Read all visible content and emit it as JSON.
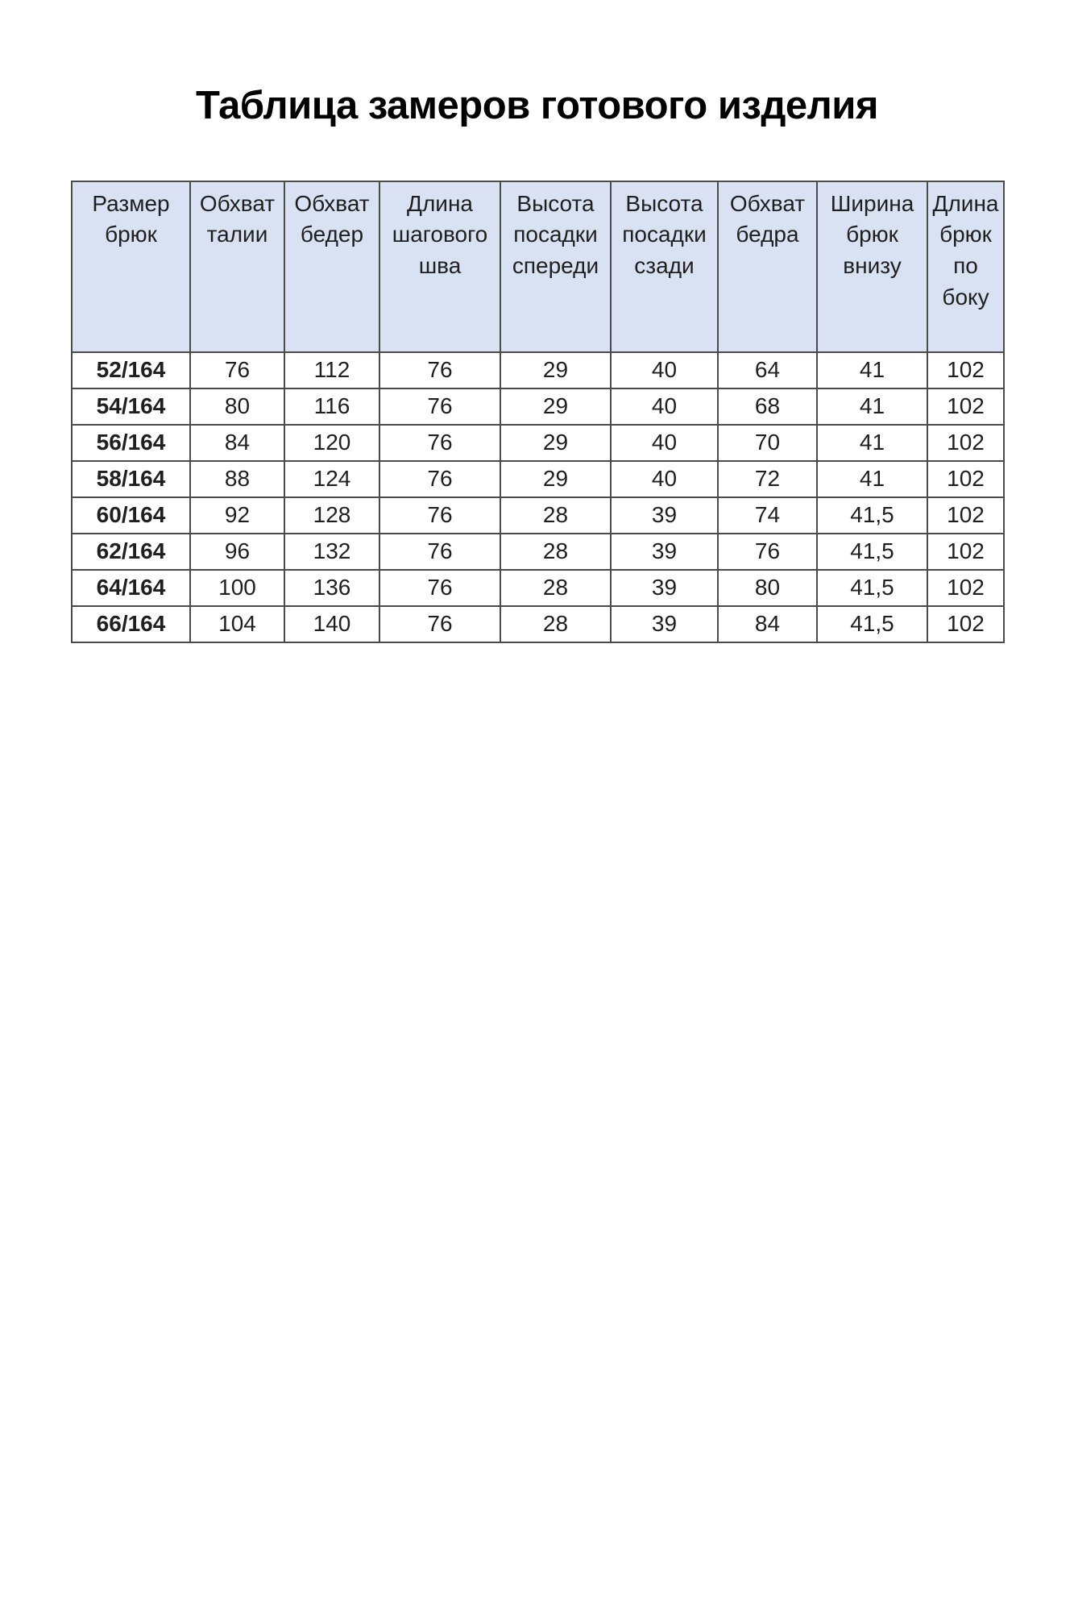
{
  "page": {
    "title": "Таблица замеров готового изделия"
  },
  "colors": {
    "header_bg": "#d9e2f3",
    "border": "#4a4a4a",
    "text": "#1f1f1f",
    "page_bg": "#ffffff"
  },
  "table": {
    "headers": [
      "Размер брюк",
      "Обхват талии",
      "Обхват бедер",
      "Длина шагового шва",
      "Высота посадки спереди",
      "Высота посадки сзади",
      "Обхват бедра",
      "Ширина брюк внизу",
      "Длина брюк по боку"
    ],
    "rows": [
      [
        "52/164",
        "76",
        "112",
        "76",
        "29",
        "40",
        "64",
        "41",
        "102"
      ],
      [
        "54/164",
        "80",
        "116",
        "76",
        "29",
        "40",
        "68",
        "41",
        "102"
      ],
      [
        "56/164",
        "84",
        "120",
        "76",
        "29",
        "40",
        "70",
        "41",
        "102"
      ],
      [
        "58/164",
        "88",
        "124",
        "76",
        "29",
        "40",
        "72",
        "41",
        "102"
      ],
      [
        "60/164",
        "92",
        "128",
        "76",
        "28",
        "39",
        "74",
        "41,5",
        "102"
      ],
      [
        "62/164",
        "96",
        "132",
        "76",
        "28",
        "39",
        "76",
        "41,5",
        "102"
      ],
      [
        "64/164",
        "100",
        "136",
        "76",
        "28",
        "39",
        "80",
        "41,5",
        "102"
      ],
      [
        "66/164",
        "104",
        "140",
        "76",
        "28",
        "39",
        "84",
        "41,5",
        "102"
      ]
    ]
  }
}
